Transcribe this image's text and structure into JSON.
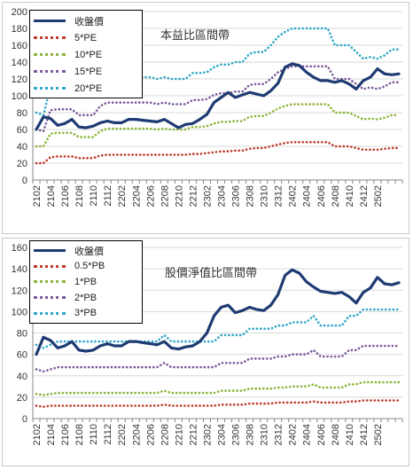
{
  "chart_data": [
    {
      "type": "line",
      "title": "本益比區間帶",
      "xlabel": "",
      "ylabel": "",
      "ylim": [
        0,
        200
      ],
      "yticks": [
        0,
        20,
        40,
        60,
        80,
        100,
        120,
        140,
        160,
        180,
        200
      ],
      "x_tick_labels": [
        "2102",
        "2104",
        "2106",
        "2108",
        "2110",
        "2112",
        "2202",
        "2204",
        "2206",
        "2208",
        "2210",
        "2212",
        "2302",
        "2304",
        "2306",
        "2308",
        "2310",
        "2312",
        "2402",
        "2404",
        "2406",
        "2408",
        "2410",
        "2412",
        "2502"
      ],
      "grid": true,
      "legend_position": "top-left",
      "series": [
        {
          "name": "收盤價",
          "color": "#1f3b73",
          "style": "solid",
          "values": [
            60,
            75,
            73,
            65,
            67,
            72,
            63,
            62,
            64,
            68,
            70,
            68,
            68,
            72,
            72,
            71,
            70,
            69,
            72,
            67,
            62,
            66,
            67,
            72,
            78,
            92,
            98,
            104,
            98,
            101,
            104,
            102,
            100,
            106,
            115,
            134,
            138,
            136,
            128,
            122,
            118,
            118,
            116,
            118,
            114,
            108,
            118,
            122,
            132,
            126,
            125,
            126
          ]
        },
        {
          "name": "5*PE",
          "color": "#c0392b",
          "style": "dotted",
          "values": [
            20,
            20,
            27,
            28,
            28,
            28,
            26,
            26,
            26,
            29,
            30,
            30,
            30,
            30,
            30,
            30,
            30,
            30,
            30,
            30,
            30,
            30,
            31,
            31,
            32,
            33,
            34,
            34,
            35,
            35,
            37,
            38,
            38,
            40,
            42,
            44,
            45,
            45,
            45,
            45,
            45,
            45,
            40,
            40,
            40,
            38,
            36,
            36,
            36,
            37,
            38,
            38
          ]
        },
        {
          "name": "10*PE",
          "color": "#8db33a",
          "style": "dotted",
          "values": [
            40,
            40,
            55,
            56,
            56,
            56,
            51,
            51,
            51,
            58,
            61,
            61,
            61,
            61,
            61,
            61,
            61,
            60,
            61,
            60,
            60,
            60,
            63,
            63,
            64,
            67,
            69,
            69,
            70,
            70,
            75,
            76,
            76,
            80,
            85,
            88,
            90,
            90,
            90,
            90,
            90,
            90,
            80,
            80,
            80,
            76,
            72,
            73,
            72,
            74,
            77,
            77
          ]
        },
        {
          "name": "15*PE",
          "color": "#7a5a9a",
          "style": "dotted",
          "values": [
            60,
            58,
            83,
            84,
            84,
            84,
            77,
            77,
            77,
            88,
            92,
            92,
            92,
            92,
            92,
            92,
            92,
            90,
            92,
            90,
            90,
            90,
            95,
            95,
            96,
            101,
            103,
            103,
            105,
            105,
            113,
            114,
            114,
            120,
            128,
            132,
            135,
            135,
            135,
            135,
            135,
            135,
            120,
            120,
            120,
            114,
            108,
            110,
            108,
            111,
            116,
            116
          ]
        },
        {
          "name": "20*PE",
          "color": "#2ea7c9",
          "style": "dotted",
          "values": [
            80,
            77,
            111,
            112,
            112,
            112,
            102,
            102,
            102,
            117,
            122,
            122,
            122,
            122,
            122,
            122,
            122,
            120,
            122,
            120,
            120,
            120,
            127,
            127,
            128,
            134,
            137,
            137,
            140,
            140,
            150,
            152,
            152,
            160,
            170,
            176,
            180,
            180,
            180,
            180,
            180,
            180,
            160,
            160,
            160,
            152,
            144,
            146,
            144,
            148,
            155,
            155
          ]
        }
      ]
    },
    {
      "type": "line",
      "title": "股價淨值比區間帶",
      "xlabel": "",
      "ylabel": "",
      "ylim": [
        0,
        160
      ],
      "yticks": [
        0,
        20,
        40,
        60,
        80,
        100,
        120,
        140,
        160
      ],
      "x_tick_labels": [
        "2102",
        "2104",
        "2106",
        "2108",
        "2110",
        "2112",
        "2202",
        "2204",
        "2206",
        "2208",
        "2210",
        "2212",
        "2302",
        "2304",
        "2306",
        "2308",
        "2310",
        "2312",
        "2402",
        "2404",
        "2406",
        "2408",
        "2410",
        "2412",
        "2502"
      ],
      "grid": true,
      "legend_position": "top-left",
      "series": [
        {
          "name": "收盤價",
          "color": "#1f3b73",
          "style": "solid",
          "values": [
            60,
            76,
            73,
            66,
            68,
            72,
            64,
            63,
            64,
            68,
            70,
            68,
            68,
            72,
            72,
            71,
            70,
            69,
            72,
            66,
            65,
            67,
            68,
            72,
            80,
            96,
            104,
            106,
            99,
            101,
            104,
            102,
            101,
            106,
            116,
            134,
            139,
            136,
            128,
            123,
            119,
            118,
            117,
            118,
            114,
            108,
            118,
            122,
            132,
            126,
            125,
            127
          ]
        },
        {
          "name": "0.5*PB",
          "color": "#c0392b",
          "style": "dotted",
          "values": [
            12,
            11,
            12,
            12,
            12,
            12,
            12,
            12,
            12,
            12,
            12,
            12,
            12,
            12,
            12,
            12,
            12,
            12,
            13,
            12,
            12,
            12,
            12,
            12,
            12,
            12,
            13,
            13,
            13,
            13,
            14,
            14,
            14,
            14,
            15,
            15,
            15,
            15,
            15,
            16,
            15,
            15,
            15,
            15,
            16,
            16,
            17,
            17,
            17,
            17,
            17,
            17
          ]
        },
        {
          "name": "1*PB",
          "color": "#8db33a",
          "style": "dotted",
          "values": [
            23,
            22,
            23,
            24,
            24,
            24,
            24,
            24,
            24,
            24,
            24,
            24,
            24,
            24,
            24,
            24,
            24,
            24,
            26,
            24,
            24,
            24,
            24,
            24,
            24,
            24,
            26,
            26,
            26,
            26,
            28,
            28,
            28,
            28,
            29,
            29,
            30,
            30,
            30,
            32,
            29,
            29,
            29,
            29,
            32,
            32,
            34,
            34,
            34,
            34,
            34,
            34
          ]
        },
        {
          "name": "2*PB",
          "color": "#7a5a9a",
          "style": "dotted",
          "values": [
            46,
            44,
            46,
            48,
            48,
            48,
            48,
            48,
            48,
            48,
            48,
            48,
            48,
            48,
            48,
            48,
            48,
            48,
            52,
            48,
            48,
            48,
            48,
            48,
            48,
            48,
            52,
            52,
            52,
            52,
            56,
            56,
            56,
            56,
            58,
            58,
            60,
            60,
            60,
            64,
            58,
            58,
            58,
            58,
            64,
            64,
            68,
            68,
            68,
            68,
            68,
            68
          ]
        },
        {
          "name": "3*PB",
          "color": "#2ea7c9",
          "style": "dotted",
          "values": [
            69,
            66,
            69,
            72,
            72,
            72,
            72,
            72,
            72,
            72,
            72,
            72,
            72,
            72,
            72,
            72,
            72,
            72,
            78,
            72,
            72,
            72,
            72,
            72,
            72,
            72,
            78,
            78,
            78,
            78,
            84,
            84,
            84,
            84,
            87,
            87,
            90,
            90,
            90,
            96,
            87,
            87,
            87,
            87,
            96,
            96,
            102,
            102,
            102,
            102,
            102,
            102
          ]
        }
      ]
    }
  ]
}
